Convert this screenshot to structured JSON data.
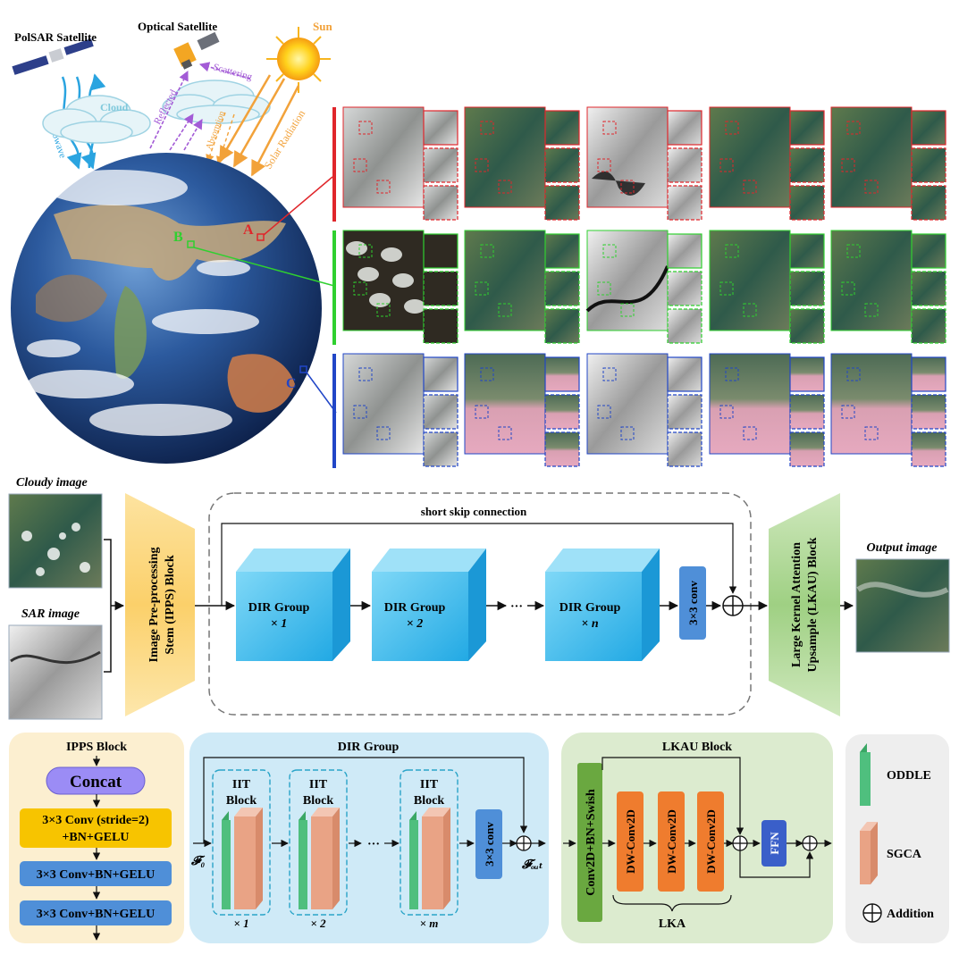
{
  "top": {
    "polsar_label": "PolSAR Satellite",
    "optical_label": "Optical Satellite",
    "sun_label": "Sun",
    "cloud_label": "Cloud",
    "microwave_label": "Microwave",
    "reflected_label": "Reflected",
    "scattering_label": "Scattering",
    "absorption_label": "Absorption",
    "solar_label": "Solar Radiation",
    "loc_a": "A",
    "loc_b": "B",
    "loc_c": "C"
  },
  "colors": {
    "row_a": "#e0262b",
    "row_b": "#2fd02f",
    "row_c": "#2146c7",
    "ipps": "#fbd77a",
    "lkau": "#a9d68e",
    "cube": "#2fb6ea",
    "conv": "#4f8fd8",
    "oddle": "#4fbf7e",
    "sgca": "#e9a385",
    "dwconv": "#ef7c2e",
    "ffn": "#3a5fc9",
    "concat": "#9b8cf5",
    "stride": "#f7c400",
    "lka_conv": "#6aa840"
  },
  "pipeline": {
    "cloudy_label": "Cloudy image",
    "sar_label": "SAR image",
    "ipps_line1": "Image Pre-processing",
    "ipps_line2": "Stem (IPPS) Block",
    "skip_label": "short skip connection",
    "dir_title": "DIR Group",
    "dir1": "× 1",
    "dir2": "× 2",
    "dirn": "× n",
    "dots": "···",
    "conv": "3×3 conv",
    "lkau_line1": "Large Kernel Attention",
    "lkau_line2": "Upsample (LKAU) Block",
    "output_label": "Output image"
  },
  "ipps_block": {
    "title": "IPPS Block",
    "concat": "Concat",
    "stride_line1": "3×3 Conv (stride=2)",
    "stride_line2": "+BN+GELU",
    "conv1": "3×3 Conv+BN+GELU",
    "conv2": "3×3 Conv+BN+GELU"
  },
  "dir_block": {
    "title": "DIR Group",
    "iit_line1": "IIT",
    "iit_line2": "Block",
    "f0": "𝓕₀",
    "fout": "𝓕ₒᵤₜ",
    "x1": "× 1",
    "x2": "× 2",
    "xm": "× m",
    "dots": "···",
    "conv": "3×3 conv"
  },
  "lkau_block": {
    "title": "LKAU Block",
    "conv2d": "Conv2D+BN+Swish",
    "dw": "DW-Conv2D",
    "ffn": "FFN",
    "lka": "LKA"
  },
  "legend": {
    "oddle": "ODDLE",
    "sgca": "SGCA",
    "addition": "Addition"
  }
}
